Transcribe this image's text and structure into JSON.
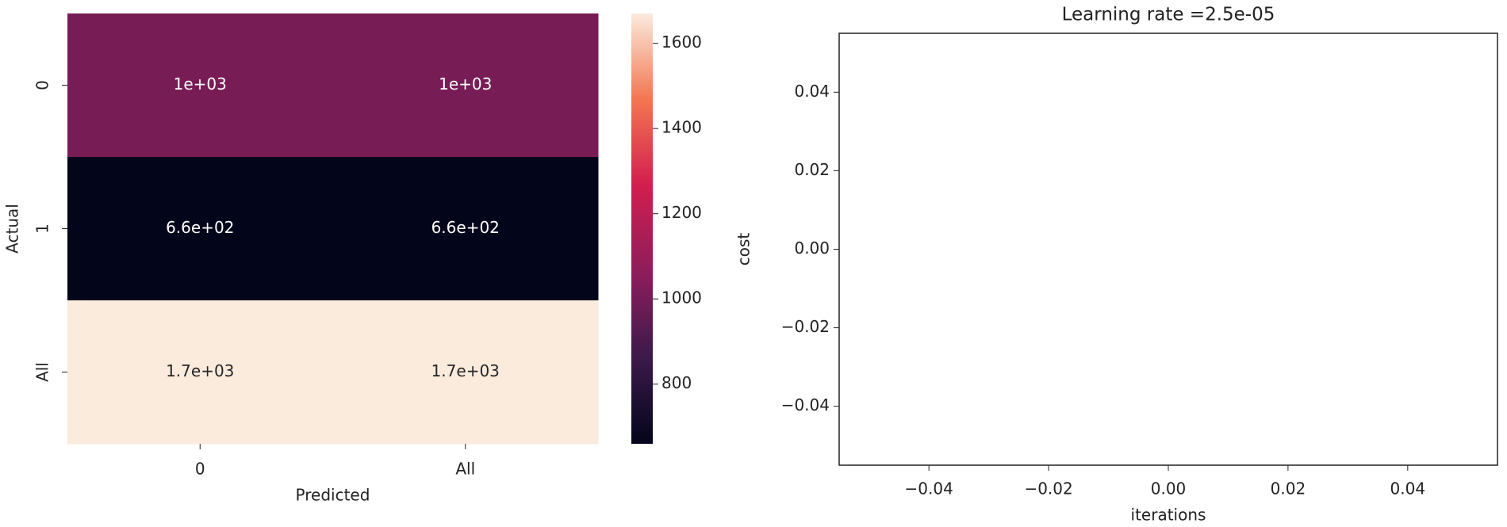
{
  "chart_data": [
    {
      "type": "heatmap",
      "xlabel": "Predicted",
      "ylabel": "Actual",
      "x_categories": [
        "0",
        "All"
      ],
      "y_categories": [
        "0",
        "1",
        "All"
      ],
      "values": [
        [
          1010,
          1010
        ],
        [
          660,
          660
        ],
        [
          1670,
          1670
        ]
      ],
      "value_labels": [
        [
          "1e+03",
          "1e+03"
        ],
        [
          "6.6e+02",
          "6.6e+02"
        ],
        [
          "1.7e+03",
          "1.7e+03"
        ]
      ],
      "colormap": "rocket",
      "clim": [
        660,
        1670
      ],
      "cticks": [
        800,
        1000,
        1200,
        1400,
        1600
      ]
    },
    {
      "type": "line",
      "title": "Learning rate =2.5e-05",
      "xlabel": "iterations",
      "ylabel": "cost",
      "series": [],
      "xlim": [
        -0.055,
        0.055
      ],
      "ylim": [
        -0.055,
        0.055
      ],
      "xticks": [
        {
          "value": -0.04,
          "label": "−0.04"
        },
        {
          "value": -0.02,
          "label": "−0.02"
        },
        {
          "value": 0,
          "label": "0.00"
        },
        0.02,
        0.04
      ],
      "yticks": [
        {
          "value": -0.04,
          "label": "−0.04"
        },
        {
          "value": -0.02,
          "label": "−0.02"
        },
        {
          "value": 0,
          "label": "0.00"
        },
        0.02,
        0.04
      ]
    }
  ]
}
